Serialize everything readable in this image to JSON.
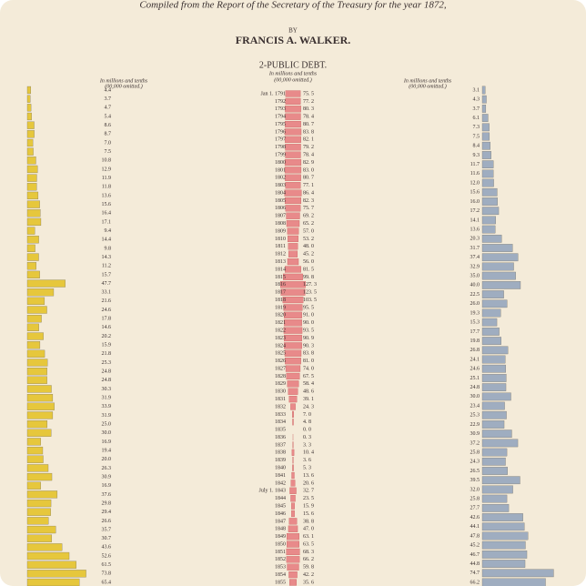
{
  "header": {
    "source": "Compiled from the Report of the Secretary of the Treasury for the year 1872,",
    "by": "BY",
    "author": "FRANCIS A. WALKER."
  },
  "chart_data": [
    {
      "type": "bar",
      "subtitle": [
        "In millions and tenths",
        "(00,000 omitted.)"
      ],
      "color": "#e6c73c",
      "values": [
        4.4,
        3.7,
        4.7,
        5.4,
        8.6,
        8.7,
        7.0,
        7.5,
        10.8,
        12.9,
        11.9,
        11.8,
        13.6,
        15.6,
        16.4,
        17.1,
        9.4,
        14.4,
        9.8,
        14.3,
        11.2,
        15.7,
        47.7,
        33.1,
        21.6,
        24.6,
        17.8,
        14.6,
        20.2,
        15.9,
        21.8,
        25.3,
        24.8,
        24.8,
        30.3,
        31.9,
        33.9,
        31.9,
        25.0,
        30.0,
        16.9,
        19.4,
        20.0,
        26.3,
        30.9,
        16.9,
        37.6,
        29.8,
        29.4,
        26.6,
        35.7,
        30.7,
        43.6,
        52.6,
        61.5,
        73.8,
        65.4
      ],
      "value_labels": [
        "4.4",
        "3.7",
        "4.7",
        "5.4",
        "8.6",
        "8.7",
        "7.0",
        "7.5",
        "10.8",
        "12.9",
        "11.9",
        "11.8",
        "13.6",
        "15.6",
        "16.4",
        "17.1",
        "9.4",
        "14.4",
        "9.8",
        "14.3",
        "11.2",
        "15.7",
        "47.7",
        "33.1",
        "21.6",
        "24.6",
        "17.8",
        "14.6",
        "20.2",
        "15.9",
        "21.8",
        "25.3",
        "24.8",
        "24.8",
        "30.3",
        "31.9",
        "33.9",
        "31.9",
        "25.0",
        "30.0",
        "16.9",
        "19.4",
        "20.0",
        "26.3",
        "30.9",
        "16.9",
        "37.6",
        "29.8",
        "29.4",
        "26.6",
        "35.7",
        "30.7",
        "43.6",
        "52.6",
        "61.5",
        "73.8",
        "65.4"
      ],
      "xlim": [
        0,
        80
      ]
    },
    {
      "type": "bar",
      "title": "2-PUBLIC DEBT.",
      "subtitle": [
        "In millions and tenths",
        "(00,000 omitted.)"
      ],
      "color": "#e88a8a",
      "categories": [
        "Jan 1. 1791",
        "1792",
        "1793",
        "1794",
        "1795",
        "1796",
        "1797",
        "1798",
        "1799",
        "1800",
        "1801",
        "1802",
        "1803",
        "1804",
        "1805",
        "1806",
        "1807",
        "1808",
        "1809",
        "1810",
        "1811",
        "1812",
        "1813",
        "1814",
        "1815",
        "1816",
        "1817",
        "1818",
        "1819",
        "1820",
        "1821",
        "1822",
        "1823",
        "1824",
        "1825",
        "1826",
        "1827",
        "1828",
        "1829",
        "1830",
        "1831",
        "1832",
        "1833",
        "1834",
        "1835",
        "1836",
        "1837",
        "1838",
        "1839",
        "1840",
        "1841",
        "1842",
        "July 1. 1843",
        "1844",
        "1845",
        "1846",
        "1847",
        "1848",
        "1849",
        "1850",
        "1851",
        "1852",
        "1853",
        "1854",
        "1855"
      ],
      "values": [
        75.5,
        77.2,
        80.3,
        78.4,
        80.7,
        83.8,
        82.1,
        79.2,
        78.4,
        82.9,
        83.0,
        80.7,
        77.1,
        86.4,
        82.3,
        75.7,
        69.2,
        65.2,
        57.0,
        53.2,
        48.0,
        45.2,
        56.0,
        81.5,
        99.8,
        127.3,
        123.5,
        103.5,
        95.5,
        91.0,
        90.0,
        93.5,
        90.9,
        90.3,
        83.8,
        81.0,
        74.0,
        67.5,
        58.4,
        48.6,
        39.1,
        24.3,
        7.0,
        4.8,
        0.0,
        0.3,
        3.3,
        10.4,
        3.6,
        5.3,
        13.6,
        20.6,
        32.7,
        23.5,
        15.9,
        15.6,
        38.8,
        47.0,
        63.1,
        63.5,
        68.3,
        66.2,
        59.8,
        42.2,
        35.6
      ],
      "value_labels": [
        "75. 5",
        "77. 2",
        "80. 3",
        "78. 4",
        "80. 7",
        "83. 8",
        "82. 1",
        "79. 2",
        "78. 4",
        "82. 9",
        "83. 0",
        "80. 7",
        "77. 1",
        "86. 4",
        "82. 3",
        "75. 7",
        "69. 2",
        "65. 2",
        "57. 0",
        "53. 2",
        "48. 0",
        "45. 2",
        "56. 0",
        "81. 5",
        "99. 8",
        "127. 3",
        "123. 5",
        "103. 5",
        "95. 5",
        "91. 0",
        "90. 0",
        "93. 5",
        "90. 9",
        "90. 3",
        "83. 8",
        "81. 0",
        "74. 0",
        "67. 5",
        "58. 4",
        "48. 6",
        "39. 1",
        "24. 3",
        "7. 0",
        "4. 8",
        "0. 0",
        "0. 3",
        "3. 3",
        "10. 4",
        "3. 6",
        "5. 3",
        "13. 6",
        "20. 6",
        "32. 7",
        "23. 5",
        "15. 9",
        "15. 6",
        "38. 8",
        "47. 0",
        "63. 1",
        "63. 5",
        "68. 3",
        "66. 2",
        "59. 8",
        "42. 2",
        "35. 6"
      ],
      "xlim": [
        0,
        130
      ]
    },
    {
      "type": "bar",
      "subtitle": [
        "In millions and tenths",
        "(00,000 omitted.)"
      ],
      "color": "#9fadc0",
      "values": [
        3.1,
        4.3,
        3.7,
        6.1,
        7.3,
        7.5,
        8.4,
        9.3,
        11.7,
        11.6,
        12.0,
        15.6,
        16.0,
        17.2,
        14.1,
        13.6,
        20.3,
        31.7,
        37.4,
        32.9,
        35.0,
        40.0,
        22.5,
        26.0,
        19.3,
        15.3,
        17.7,
        19.8,
        26.8,
        24.1,
        24.6,
        25.1,
        24.8,
        30.0,
        23.4,
        25.3,
        22.9,
        30.9,
        37.2,
        25.8,
        24.3,
        26.5,
        39.5,
        32.0,
        25.8,
        27.7,
        42.6,
        44.1,
        47.8,
        45.2,
        46.7,
        44.8,
        74.7,
        66.2
      ],
      "value_labels": [
        "3.1",
        "4.3",
        "3.7",
        "6.1",
        "7.3",
        "7.5",
        "8.4",
        "9.3",
        "11.7",
        "11.6",
        "12.0",
        "15.6",
        "16.0",
        "17.2",
        "14.1",
        "13.6",
        "20.3",
        "31.7",
        "37.4",
        "32.9",
        "35.0",
        "40.0",
        "22.5",
        "26.0",
        "19.3",
        "15.3",
        "17.7",
        "19.8",
        "26.8",
        "24.1",
        "24.6",
        "25.1",
        "24.8",
        "30.0",
        "23.4",
        "25.3",
        "22.9",
        "30.9",
        "37.2",
        "25.8",
        "24.3",
        "26.5",
        "39.5",
        "32.0",
        "25.8",
        "27.7",
        "42.6",
        "44.1",
        "47.8",
        "45.2",
        "46.7",
        "44.8",
        "74.7",
        "66.2"
      ],
      "xlim": [
        0,
        80
      ]
    }
  ]
}
